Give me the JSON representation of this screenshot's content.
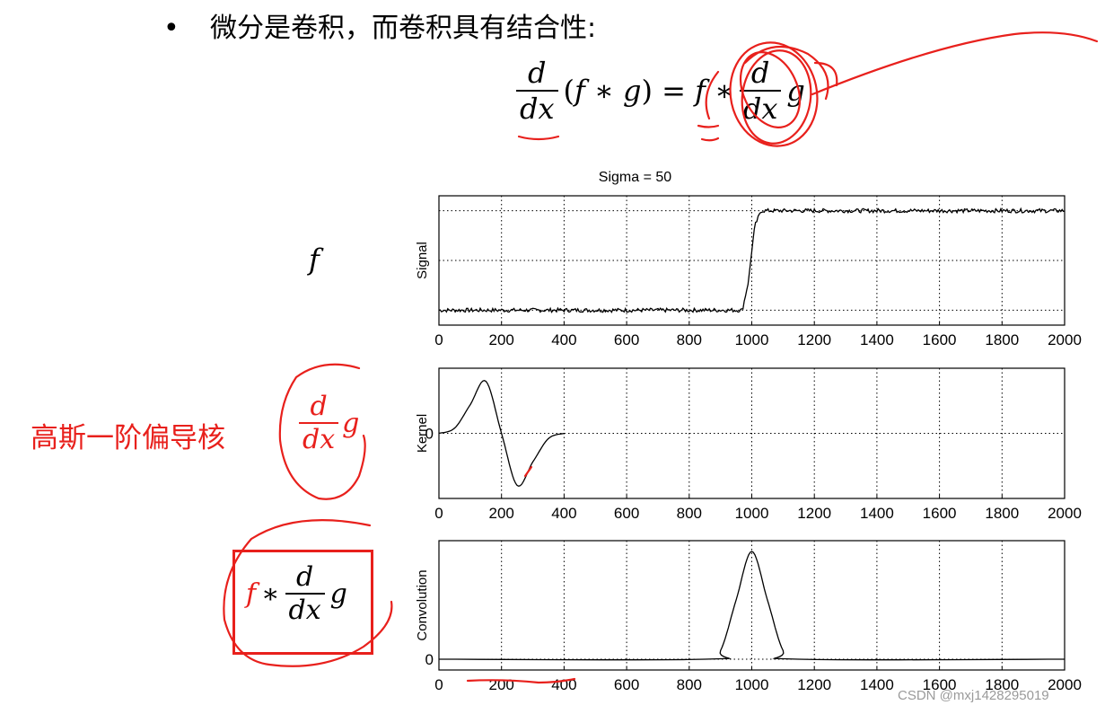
{
  "slide": {
    "bullet_text": "微分是卷积，而卷积具有结合性:",
    "f_symbol": "f",
    "red_label": "高斯一阶偏导核",
    "watermark": "CSDN @mxj1428295019"
  },
  "chart_data": [
    {
      "type": "line",
      "title": "Sigma = 50",
      "ylabel": "Signal",
      "xlim": [
        0,
        2000
      ],
      "xticks": [
        0,
        200,
        400,
        600,
        800,
        1000,
        1200,
        1400,
        1600,
        1800,
        2000
      ],
      "grid": true,
      "series": [
        {
          "x": [
            0,
            970,
            990,
            1000,
            1010,
            1030,
            2000
          ],
          "y": [
            0,
            0,
            0.3,
            0.6,
            0.85,
            1,
            1
          ],
          "noise": 0.02
        }
      ]
    },
    {
      "type": "line",
      "ylabel": "Kernel",
      "yticks": [
        0
      ],
      "xlim": [
        0,
        2000
      ],
      "xticks": [
        0,
        200,
        400,
        600,
        800,
        1000,
        1200,
        1400,
        1600,
        1800,
        2000
      ],
      "grid": true,
      "series": [
        {
          "x": [
            0,
            50,
            100,
            150,
            200,
            250,
            300,
            350,
            400
          ],
          "y": [
            0,
            0.1,
            0.55,
            1,
            0,
            -1,
            -0.55,
            -0.1,
            0
          ]
        }
      ]
    },
    {
      "type": "line",
      "ylabel": "Convolution",
      "yticks": [
        0
      ],
      "xlim": [
        0,
        2000
      ],
      "xticks": [
        0,
        200,
        400,
        600,
        800,
        1000,
        1200,
        1400,
        1600,
        1800,
        2000
      ],
      "grid": true,
      "series": [
        {
          "x": [
            0,
            850,
            900,
            950,
            1000,
            1050,
            1100,
            1150,
            2000
          ],
          "y": [
            0,
            0,
            0.08,
            0.55,
            1,
            0.55,
            0.08,
            0,
            0
          ]
        }
      ]
    }
  ]
}
